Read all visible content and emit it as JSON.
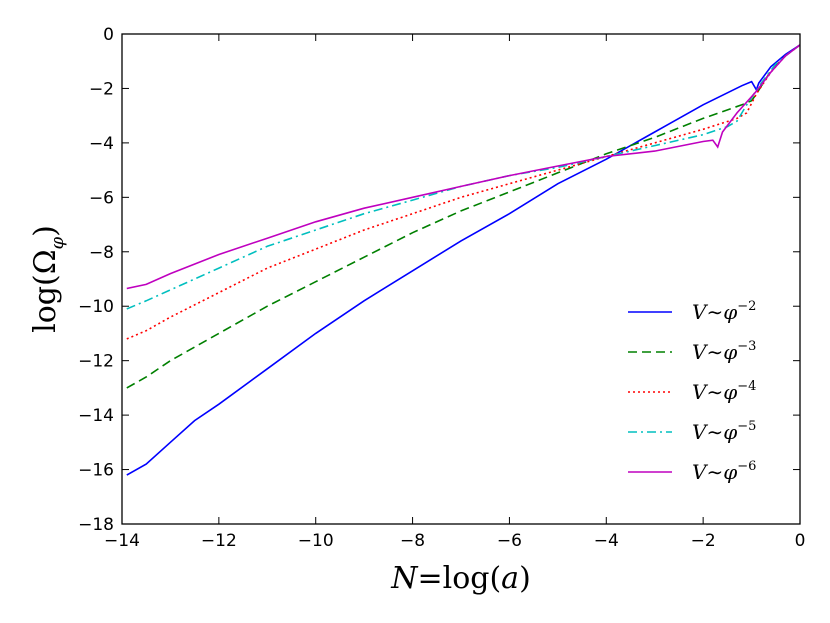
{
  "chart_data": {
    "type": "line",
    "title": "",
    "xlabel": "N=log(a)",
    "ylabel": "log(Ωφ)",
    "xlim": [
      -14,
      0
    ],
    "ylim": [
      -18,
      0
    ],
    "xticks": [
      -14,
      -12,
      -10,
      -8,
      -6,
      -4,
      -2,
      0
    ],
    "yticks": [
      0,
      -2,
      -4,
      -6,
      -8,
      -10,
      -12,
      -14,
      -16,
      -18
    ],
    "xtick_labels": [
      "−14",
      "−12",
      "−10",
      "−8",
      "−6",
      "−4",
      "−2",
      "0"
    ],
    "ytick_labels": [
      "0",
      "−2",
      "−4",
      "−6",
      "−8",
      "−10",
      "−12",
      "−14",
      "−16",
      "−18"
    ],
    "grid": false,
    "legend_position": "lower-right",
    "series": [
      {
        "name": "V∼φ^-2",
        "label_base": "V∼φ",
        "label_exp": "−2",
        "color": "#0000ff",
        "style": "solid",
        "points": [
          [
            -13.9,
            -16.2
          ],
          [
            -13.5,
            -15.8
          ],
          [
            -13,
            -15.0
          ],
          [
            -12.5,
            -14.2
          ],
          [
            -12,
            -13.6
          ],
          [
            -11,
            -12.3
          ],
          [
            -10,
            -11.0
          ],
          [
            -9,
            -9.8
          ],
          [
            -8,
            -8.7
          ],
          [
            -7,
            -7.6
          ],
          [
            -6,
            -6.6
          ],
          [
            -5,
            -5.5
          ],
          [
            -4,
            -4.6
          ],
          [
            -3,
            -3.6
          ],
          [
            -2,
            -2.6
          ],
          [
            -1.2,
            -1.9
          ],
          [
            -1.0,
            -1.75
          ],
          [
            -0.9,
            -2.05
          ],
          [
            -0.85,
            -1.8
          ],
          [
            -0.6,
            -1.2
          ],
          [
            -0.3,
            -0.75
          ],
          [
            0,
            -0.4
          ]
        ]
      },
      {
        "name": "V∼φ^-3",
        "label_base": "V∼φ",
        "label_exp": "−3",
        "color": "#008000",
        "style": "dashed",
        "points": [
          [
            -13.9,
            -13.0
          ],
          [
            -13.5,
            -12.6
          ],
          [
            -13,
            -12.0
          ],
          [
            -12,
            -11.0
          ],
          [
            -11,
            -10.0
          ],
          [
            -10,
            -9.1
          ],
          [
            -9,
            -8.2
          ],
          [
            -8,
            -7.3
          ],
          [
            -7,
            -6.5
          ],
          [
            -6,
            -5.8
          ],
          [
            -5,
            -5.1
          ],
          [
            -4,
            -4.4
          ],
          [
            -3,
            -3.8
          ],
          [
            -2,
            -3.1
          ],
          [
            -1.2,
            -2.6
          ],
          [
            -1.0,
            -2.45
          ],
          [
            -0.9,
            -2.2
          ],
          [
            -0.6,
            -1.35
          ],
          [
            -0.3,
            -0.8
          ],
          [
            0,
            -0.4
          ]
        ]
      },
      {
        "name": "V∼φ^-4",
        "label_base": "V∼φ",
        "label_exp": "−4",
        "color": "#ff0000",
        "style": "dotted",
        "points": [
          [
            -13.9,
            -11.2
          ],
          [
            -13.5,
            -10.9
          ],
          [
            -13,
            -10.4
          ],
          [
            -12,
            -9.5
          ],
          [
            -11,
            -8.6
          ],
          [
            -10,
            -7.9
          ],
          [
            -9,
            -7.2
          ],
          [
            -8,
            -6.6
          ],
          [
            -7,
            -6.0
          ],
          [
            -6,
            -5.5
          ],
          [
            -5,
            -5.0
          ],
          [
            -4,
            -4.5
          ],
          [
            -3,
            -4.0
          ],
          [
            -2,
            -3.5
          ],
          [
            -1.3,
            -3.1
          ],
          [
            -1.1,
            -2.9
          ],
          [
            -0.9,
            -2.2
          ],
          [
            -0.6,
            -1.4
          ],
          [
            -0.3,
            -0.8
          ],
          [
            0,
            -0.4
          ]
        ]
      },
      {
        "name": "V∼φ^-5",
        "label_base": "V∼φ",
        "label_exp": "−5",
        "color": "#00bfbf",
        "style": "dashdot",
        "points": [
          [
            -13.9,
            -10.1
          ],
          [
            -13.5,
            -9.8
          ],
          [
            -13,
            -9.4
          ],
          [
            -12,
            -8.6
          ],
          [
            -11,
            -7.8
          ],
          [
            -10,
            -7.2
          ],
          [
            -9,
            -6.6
          ],
          [
            -8,
            -6.1
          ],
          [
            -7,
            -5.6
          ],
          [
            -6,
            -5.2
          ],
          [
            -5,
            -4.9
          ],
          [
            -4,
            -4.5
          ],
          [
            -3,
            -4.1
          ],
          [
            -2,
            -3.7
          ],
          [
            -1.5,
            -3.4
          ],
          [
            -1.3,
            -3.2
          ],
          [
            -1.1,
            -2.6
          ],
          [
            -0.8,
            -1.8
          ],
          [
            -0.5,
            -1.1
          ],
          [
            -0.3,
            -0.8
          ],
          [
            0,
            -0.4
          ]
        ]
      },
      {
        "name": "V∼φ^-6",
        "label_base": "V∼φ",
        "label_exp": "−6",
        "color": "#bf00bf",
        "style": "solid",
        "points": [
          [
            -13.9,
            -9.35
          ],
          [
            -13.5,
            -9.2
          ],
          [
            -13,
            -8.8
          ],
          [
            -12,
            -8.1
          ],
          [
            -11,
            -7.5
          ],
          [
            -10,
            -6.9
          ],
          [
            -9,
            -6.4
          ],
          [
            -8,
            -6.0
          ],
          [
            -7,
            -5.6
          ],
          [
            -6,
            -5.2
          ],
          [
            -5,
            -4.85
          ],
          [
            -4,
            -4.5
          ],
          [
            -3,
            -4.3
          ],
          [
            -2,
            -3.95
          ],
          [
            -1.8,
            -3.9
          ],
          [
            -1.7,
            -4.15
          ],
          [
            -1.6,
            -3.6
          ],
          [
            -1.3,
            -2.9
          ],
          [
            -1.0,
            -2.3
          ],
          [
            -0.9,
            -2.1
          ],
          [
            -0.6,
            -1.4
          ],
          [
            -0.3,
            -0.8
          ],
          [
            0,
            -0.4
          ]
        ]
      }
    ]
  }
}
